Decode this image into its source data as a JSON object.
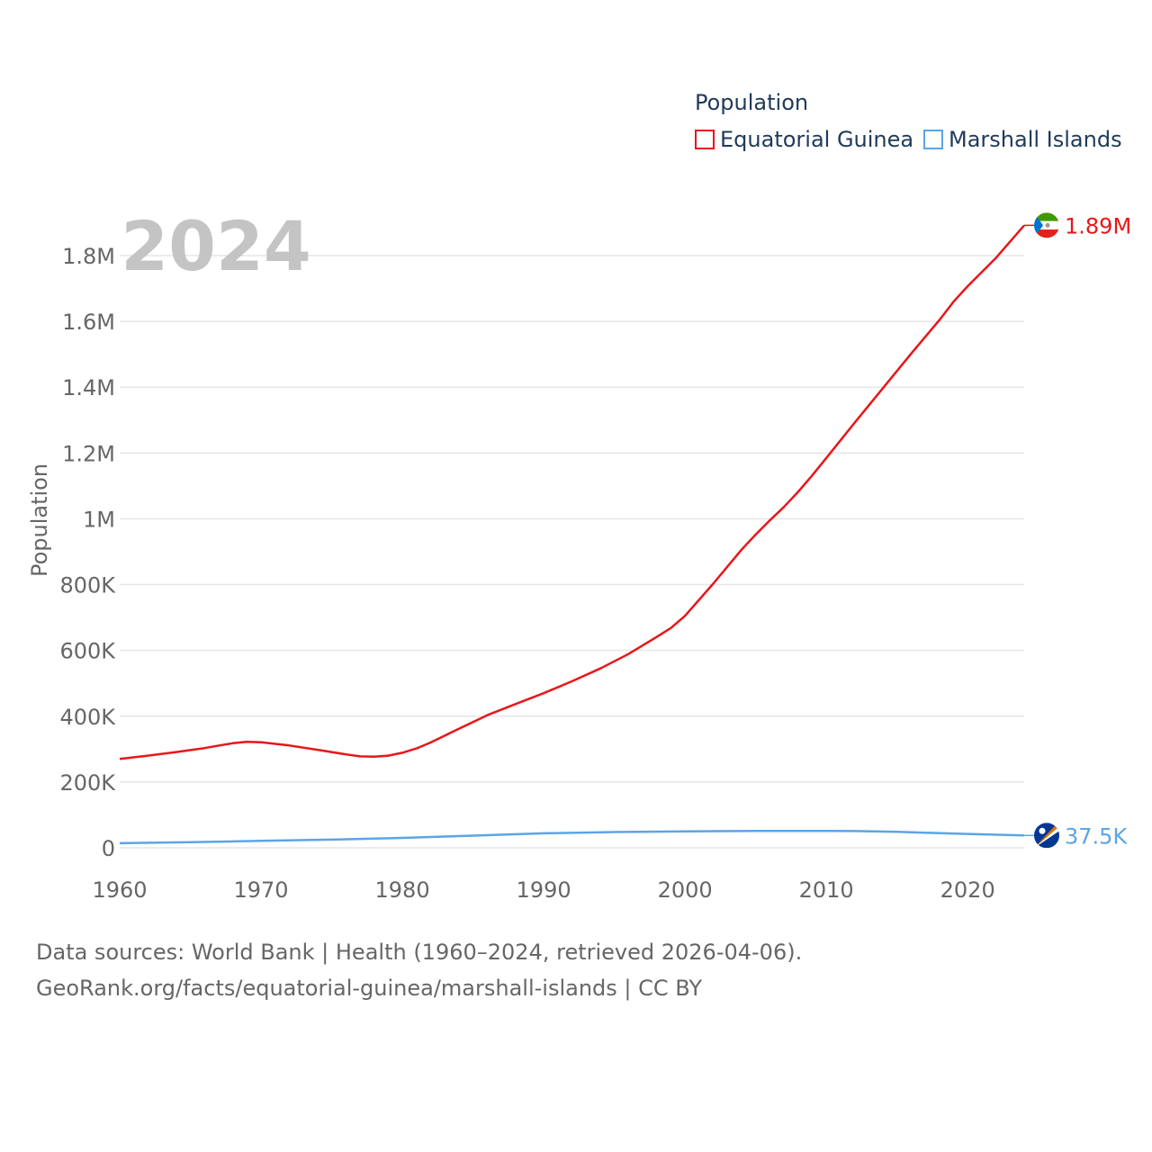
{
  "legend": {
    "title": "Population",
    "items": [
      {
        "label": "Equatorial Guinea",
        "color": "#e8161a"
      },
      {
        "label": "Marshall Islands",
        "color": "#5ba5e6"
      }
    ]
  },
  "footer": {
    "line1": "Data sources: World Bank | Health (1960–2024, retrieved 2026-04-06).",
    "line2": "GeoRank.org/facts/equatorial-guinea/marshall-islands | CC BY"
  },
  "chart_data": {
    "type": "line",
    "year_label": "2024",
    "ylabel": "Population",
    "xlabel": "",
    "xlim": [
      1960,
      2024
    ],
    "ylim": [
      0,
      1900000
    ],
    "x_ticks": [
      {
        "value": 1960,
        "label": "1960"
      },
      {
        "value": 1970,
        "label": "1970"
      },
      {
        "value": 1980,
        "label": "1980"
      },
      {
        "value": 1990,
        "label": "1990"
      },
      {
        "value": 2000,
        "label": "2000"
      },
      {
        "value": 2010,
        "label": "2010"
      },
      {
        "value": 2020,
        "label": "2020"
      }
    ],
    "y_ticks": [
      {
        "value": 0,
        "label": "0"
      },
      {
        "value": 200000,
        "label": "200K"
      },
      {
        "value": 400000,
        "label": "400K"
      },
      {
        "value": 600000,
        "label": "600K"
      },
      {
        "value": 800000,
        "label": "800K"
      },
      {
        "value": 1000000,
        "label": "1M"
      },
      {
        "value": 1200000,
        "label": "1.2M"
      },
      {
        "value": 1400000,
        "label": "1.4M"
      },
      {
        "value": 1600000,
        "label": "1.6M"
      },
      {
        "value": 1800000,
        "label": "1.8M"
      }
    ],
    "series": [
      {
        "name": "Equatorial Guinea",
        "color": "#e8161a",
        "end_label": "1.89M",
        "flag": "equatorial-guinea-flag-icon",
        "points": [
          [
            1960,
            270000
          ],
          [
            1962,
            280000
          ],
          [
            1964,
            291000
          ],
          [
            1966,
            303000
          ],
          [
            1968,
            318000
          ],
          [
            1969,
            322000
          ],
          [
            1970,
            321000
          ],
          [
            1972,
            311000
          ],
          [
            1974,
            298000
          ],
          [
            1976,
            284000
          ],
          [
            1977,
            278000
          ],
          [
            1978,
            277000
          ],
          [
            1979,
            280000
          ],
          [
            1980,
            289000
          ],
          [
            1981,
            302000
          ],
          [
            1982,
            320000
          ],
          [
            1984,
            362000
          ],
          [
            1986,
            403000
          ],
          [
            1988,
            437000
          ],
          [
            1990,
            470000
          ],
          [
            1992,
            506000
          ],
          [
            1994,
            545000
          ],
          [
            1996,
            589000
          ],
          [
            1998,
            641000
          ],
          [
            1999,
            668000
          ],
          [
            2000,
            705000
          ],
          [
            2002,
            803000
          ],
          [
            2004,
            906000
          ],
          [
            2005,
            952000
          ],
          [
            2006,
            995000
          ],
          [
            2007,
            1036000
          ],
          [
            2008,
            1082000
          ],
          [
            2009,
            1132000
          ],
          [
            2010,
            1185000
          ],
          [
            2012,
            1292000
          ],
          [
            2014,
            1397000
          ],
          [
            2016,
            1502000
          ],
          [
            2018,
            1604000
          ],
          [
            2019,
            1660000
          ],
          [
            2020,
            1707000
          ],
          [
            2022,
            1793000
          ],
          [
            2024,
            1892000
          ]
        ]
      },
      {
        "name": "Marshall Islands",
        "color": "#5ba5e6",
        "end_label": "37.5K",
        "flag": "marshall-islands-flag-icon",
        "points": [
          [
            1960,
            14000
          ],
          [
            1965,
            17000
          ],
          [
            1970,
            21000
          ],
          [
            1975,
            25000
          ],
          [
            1980,
            30000
          ],
          [
            1985,
            37000
          ],
          [
            1990,
            44000
          ],
          [
            1995,
            48000
          ],
          [
            2000,
            50000
          ],
          [
            2005,
            51500
          ],
          [
            2010,
            51500
          ],
          [
            2012,
            51000
          ],
          [
            2015,
            48500
          ],
          [
            2020,
            42000
          ],
          [
            2024,
            37500
          ]
        ]
      }
    ]
  }
}
